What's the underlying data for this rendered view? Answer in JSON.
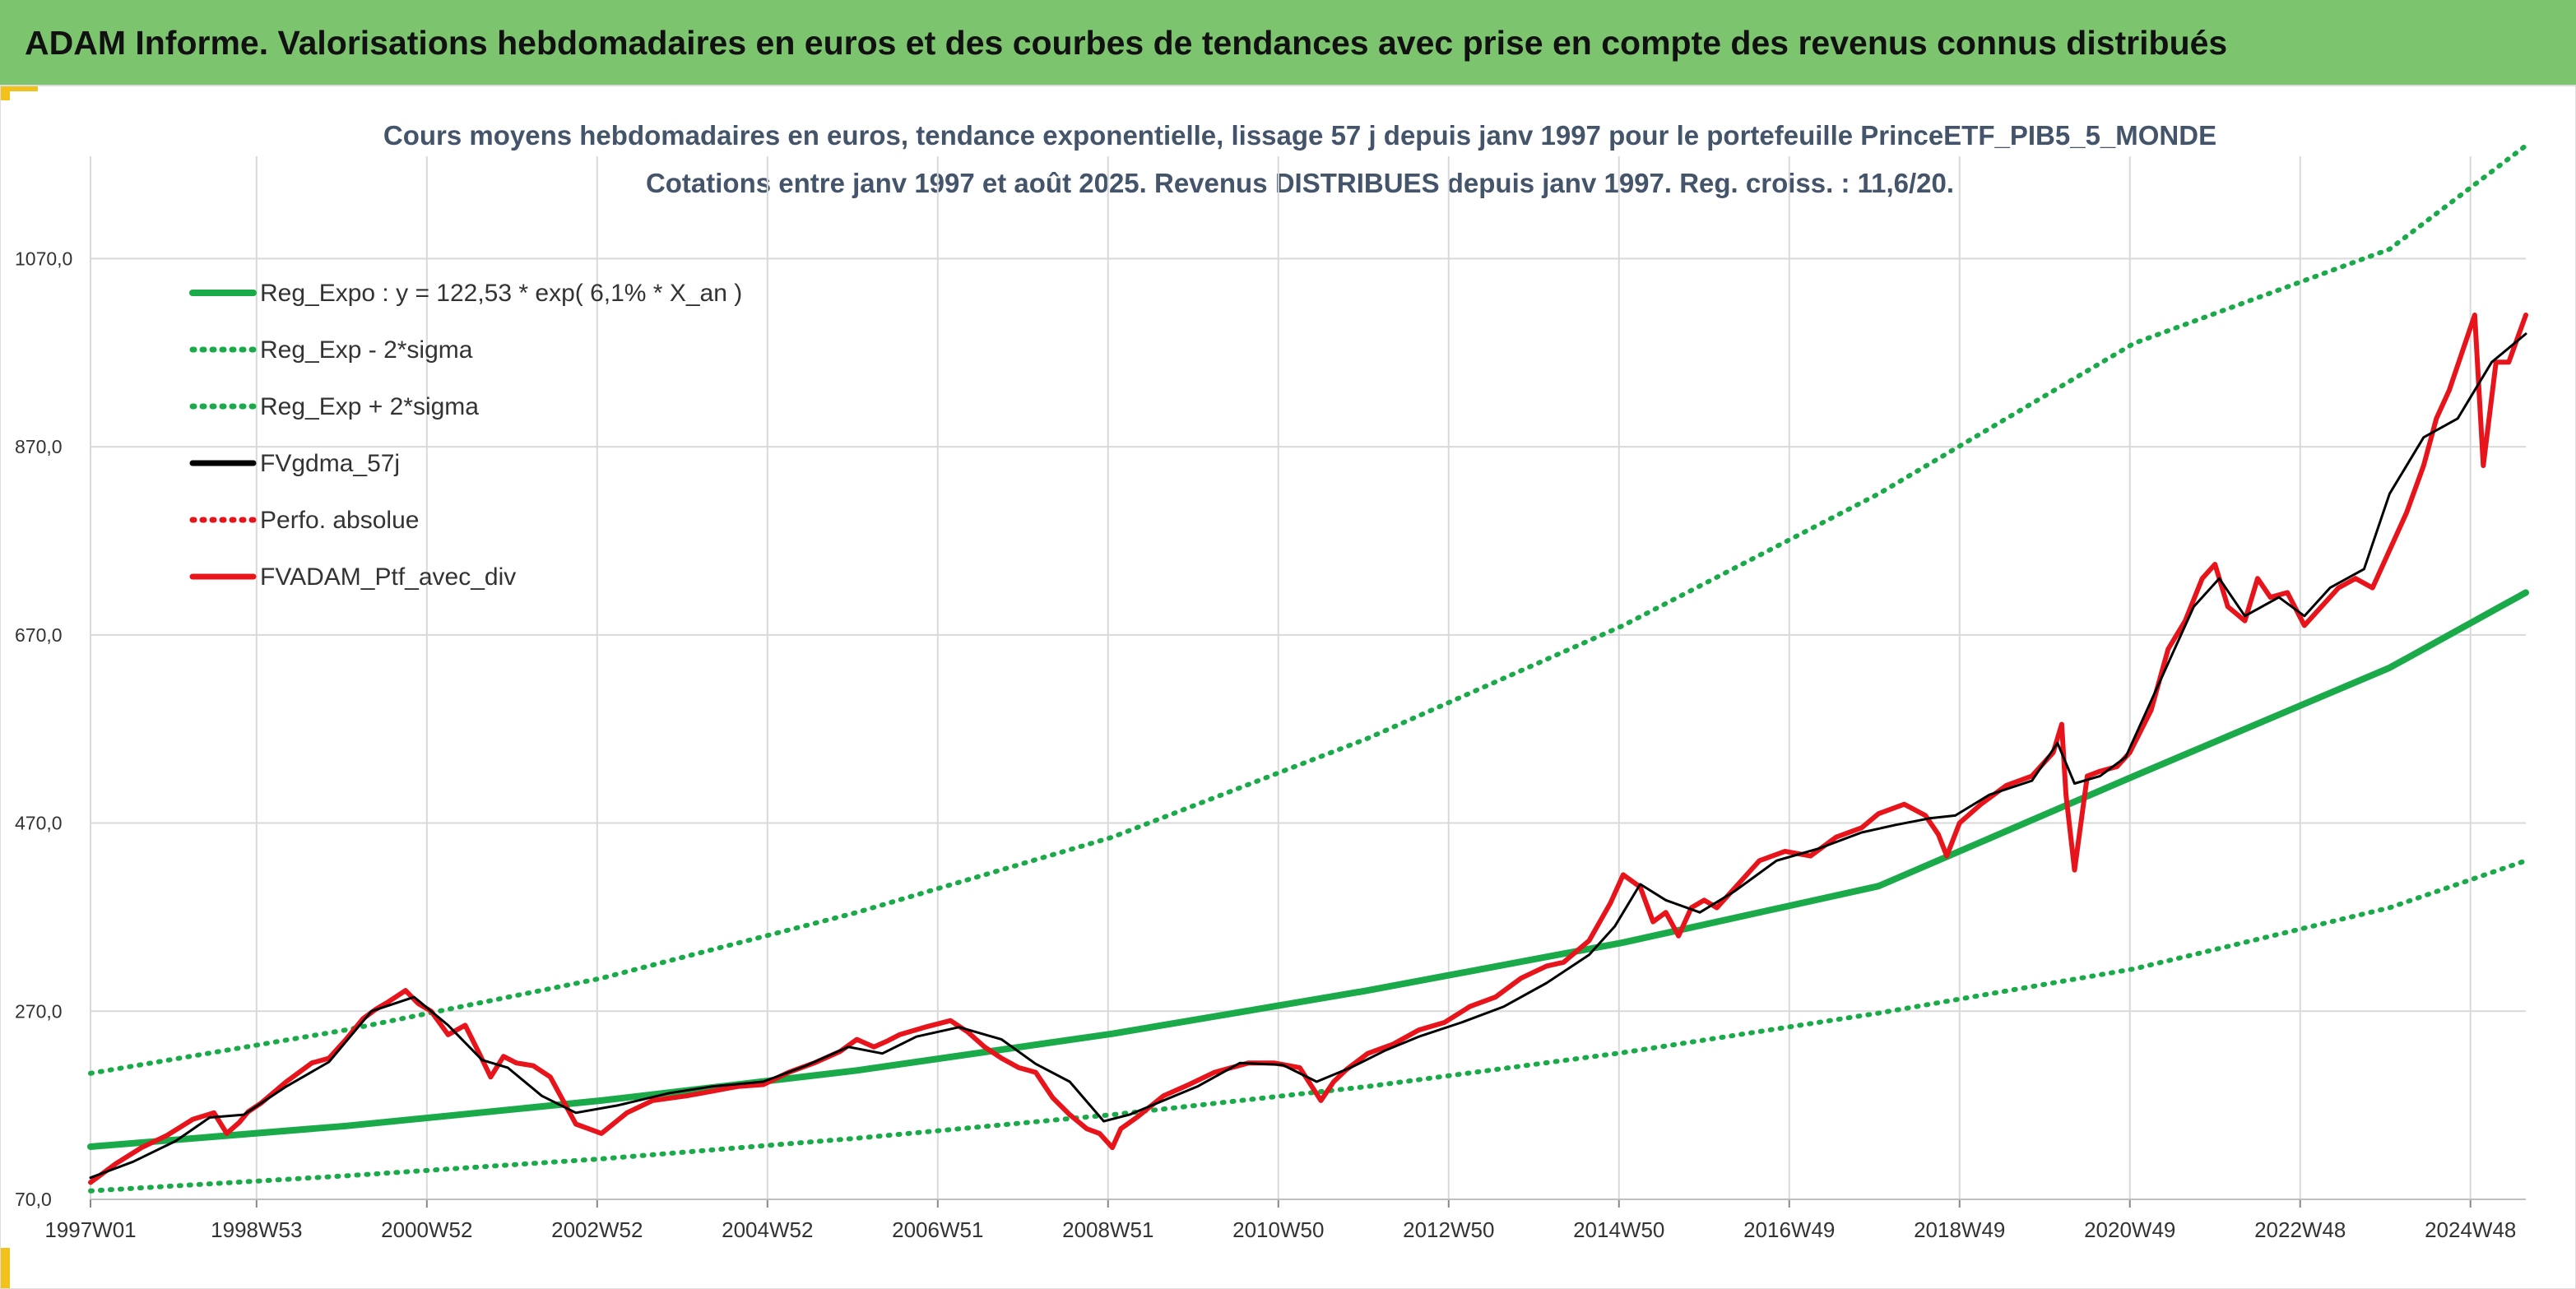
{
  "header": {
    "title": "ADAM Informe. Valorisations hebdomadaires en euros et des courbes de tendances avec prise en compte des revenus connus distribués"
  },
  "colors": {
    "header_bg": "#7dc46f",
    "accent": "#f2c11b",
    "reg_green": "#1aaa4a",
    "black": "#000000",
    "red": "#e8141b"
  },
  "chart_data": {
    "type": "line",
    "title": "Cours moyens hebdomadaires en euros, tendance exponentielle, lissage 57 j depuis janv 1997 pour le portefeuille PrinceETF_PIB5_5_MONDE",
    "subtitle": "Cotations entre janv 1997 et août 2025. Revenus DISTRIBUES depuis janv 1997. Reg. croiss. : 11,6/20.",
    "xlabel": "",
    "ylabel": "",
    "xlim": [
      1997.0,
      2025.6
    ],
    "ylim": [
      70,
      1170
    ],
    "yticks": [
      70,
      270,
      470,
      670,
      870,
      1070
    ],
    "ytick_labels": [
      "70,0",
      "270,0",
      "470,0",
      "670,0",
      "870,0",
      "1070,0"
    ],
    "xticks": [
      1997.0,
      1998.95,
      2000.95,
      2002.95,
      2004.95,
      2006.95,
      2008.95,
      2010.95,
      2012.95,
      2014.95,
      2016.95,
      2018.95,
      2020.95,
      2022.95,
      2024.95
    ],
    "xtick_labels": [
      "1997W01",
      "1998W53",
      "2000W52",
      "2002W52",
      "2004W52",
      "2006W51",
      "2008W51",
      "2010W50",
      "2012W50",
      "2014W50",
      "2016W49",
      "2018W49",
      "2020W49",
      "2022W48",
      "2024W48"
    ],
    "grid": "vertical",
    "legend_position": "top-left",
    "series": [
      {
        "name": "Reg_Expo : y = 122,53 * exp( 6,1% *  X_an )",
        "style": "solid",
        "color": "#1aaa4a",
        "x": [
          1997.0,
          2000.0,
          2003.0,
          2006.0,
          2009.0,
          2012.0,
          2015.0,
          2018.0,
          2021.0,
          2024.0,
          2025.6
        ],
        "y": [
          126,
          148,
          175,
          207,
          246,
          292,
          343,
          403,
          520,
          635,
          715
        ]
      },
      {
        "name": "Reg_Exp - 2*sigma",
        "style": "dotted",
        "color": "#1aaa4a",
        "x": [
          1997.0,
          2000.0,
          2003.0,
          2006.0,
          2009.0,
          2012.0,
          2015.0,
          2018.0,
          2021.0,
          2024.0,
          2025.6
        ],
        "y": [
          79,
          95,
          113,
          135,
          160,
          190,
          226,
          268,
          315,
          380,
          430
        ]
      },
      {
        "name": "Reg_Exp + 2*sigma",
        "style": "dotted",
        "color": "#1aaa4a",
        "x": [
          1997.0,
          2000.0,
          2003.0,
          2006.0,
          2009.0,
          2012.0,
          2015.0,
          2018.0,
          2021.0,
          2024.0,
          2025.6
        ],
        "y": [
          204,
          250,
          305,
          375,
          455,
          560,
          680,
          820,
          980,
          1080,
          1190
        ]
      },
      {
        "name": "FVgdma_57j",
        "style": "solid",
        "color": "#000000",
        "x": [
          1997.0,
          1997.5,
          1998.0,
          1998.4,
          1998.8,
          1999.3,
          1999.8,
          2000.3,
          2000.8,
          2001.2,
          2001.6,
          2001.9,
          2002.3,
          2002.7,
          2003.2,
          2003.8,
          2004.3,
          2004.9,
          2005.4,
          2005.9,
          2006.3,
          2006.7,
          2007.2,
          2007.7,
          2008.1,
          2008.5,
          2008.9,
          2009.2,
          2009.6,
          2010.0,
          2010.5,
          2011.0,
          2011.4,
          2011.8,
          2012.2,
          2012.6,
          2013.1,
          2013.6,
          2014.1,
          2014.6,
          2014.9,
          2015.2,
          2015.5,
          2015.9,
          2016.3,
          2016.8,
          2017.3,
          2017.8,
          2018.2,
          2018.6,
          2018.9,
          2019.3,
          2019.8,
          2020.1,
          2020.3,
          2020.6,
          2020.9,
          2021.3,
          2021.7,
          2022.0,
          2022.3,
          2022.7,
          2023.0,
          2023.3,
          2023.7,
          2024.0,
          2024.4,
          2024.8,
          2025.2,
          2025.6
        ],
        "y": [
          93,
          110,
          132,
          157,
          160,
          190,
          216,
          270,
          285,
          255,
          218,
          210,
          180,
          162,
          170,
          183,
          190,
          195,
          212,
          232,
          225,
          243,
          253,
          240,
          214,
          195,
          153,
          160,
          175,
          190,
          215,
          213,
          195,
          210,
          228,
          243,
          258,
          275,
          300,
          330,
          360,
          405,
          388,
          375,
          397,
          430,
          443,
          460,
          468,
          475,
          478,
          500,
          515,
          555,
          512,
          520,
          540,
          620,
          700,
          730,
          690,
          710,
          690,
          720,
          740,
          820,
          880,
          900,
          960,
          990
        ]
      },
      {
        "name": "Perfo. absolue",
        "style": "dotted",
        "color": "#e8141b",
        "x": [
          1997.0,
          1997.5,
          1998.0,
          1998.4,
          1998.8,
          1999.3,
          1999.8,
          2000.3,
          2000.8,
          2001.2,
          2001.6,
          2001.9,
          2002.3,
          2002.7,
          2003.2,
          2003.8,
          2004.3,
          2004.9,
          2005.4,
          2005.9,
          2006.3,
          2006.7,
          2007.2,
          2007.7,
          2008.1,
          2008.5,
          2008.9,
          2009.2,
          2009.6,
          2010.0,
          2010.5,
          2011.0,
          2011.4,
          2011.8,
          2012.2,
          2012.6,
          2013.1,
          2013.6,
          2014.1,
          2014.6,
          2014.9,
          2015.2,
          2015.5,
          2015.9,
          2016.3,
          2016.8,
          2017.3,
          2017.8,
          2018.2,
          2018.6,
          2018.9,
          2019.3,
          2019.8,
          2020.1,
          2020.3,
          2020.6,
          2020.9,
          2021.3,
          2021.7,
          2022.0,
          2022.3,
          2022.7,
          2023.0,
          2023.3,
          2023.7,
          2024.0,
          2024.4,
          2024.8,
          2025.2,
          2025.6
        ],
        "y": [
          93,
          110,
          132,
          157,
          160,
          190,
          216,
          270,
          285,
          255,
          218,
          210,
          180,
          162,
          170,
          183,
          190,
          195,
          212,
          232,
          225,
          243,
          253,
          240,
          214,
          195,
          153,
          160,
          175,
          190,
          215,
          213,
          195,
          210,
          228,
          243,
          258,
          275,
          300,
          330,
          360,
          405,
          388,
          375,
          397,
          430,
          443,
          460,
          468,
          475,
          478,
          500,
          515,
          555,
          512,
          520,
          540,
          620,
          700,
          730,
          690,
          710,
          690,
          720,
          740,
          820,
          880,
          900,
          960,
          990
        ]
      },
      {
        "name": "FVADAM_Ptf_avec_div",
        "style": "solid",
        "color": "#e8141b",
        "x": [
          1997.0,
          1997.3,
          1997.6,
          1997.9,
          1998.2,
          1998.45,
          1998.6,
          1998.75,
          1998.85,
          1999.0,
          1999.3,
          1999.6,
          1999.8,
          2000.0,
          2000.2,
          2000.35,
          2000.5,
          2000.7,
          2000.85,
          2001.0,
          2001.2,
          2001.4,
          2001.55,
          2001.7,
          2001.85,
          2002.0,
          2002.2,
          2002.4,
          2002.55,
          2002.7,
          2002.85,
          2003.0,
          2003.3,
          2003.6,
          2004.0,
          2004.3,
          2004.6,
          2004.9,
          2005.2,
          2005.5,
          2005.8,
          2006.0,
          2006.2,
          2006.35,
          2006.5,
          2006.8,
          2007.1,
          2007.3,
          2007.5,
          2007.7,
          2007.9,
          2008.1,
          2008.3,
          2008.5,
          2008.7,
          2008.85,
          2009.0,
          2009.1,
          2009.3,
          2009.6,
          2009.9,
          2010.2,
          2010.4,
          2010.6,
          2010.9,
          2011.2,
          2011.45,
          2011.6,
          2011.75,
          2012.0,
          2012.3,
          2012.6,
          2012.9,
          2013.2,
          2013.5,
          2013.8,
          2014.1,
          2014.3,
          2014.6,
          2014.85,
          2015.0,
          2015.2,
          2015.35,
          2015.5,
          2015.65,
          2015.8,
          2015.95,
          2016.1,
          2016.3,
          2016.6,
          2016.9,
          2017.2,
          2017.5,
          2017.8,
          2018.0,
          2018.3,
          2018.55,
          2018.7,
          2018.8,
          2018.95,
          2019.2,
          2019.5,
          2019.8,
          2020.05,
          2020.15,
          2020.2,
          2020.3,
          2020.45,
          2020.6,
          2020.8,
          2020.95,
          2021.2,
          2021.4,
          2021.6,
          2021.8,
          2021.95,
          2022.1,
          2022.3,
          2022.45,
          2022.6,
          2022.8,
          2023.0,
          2023.2,
          2023.4,
          2023.6,
          2023.8,
          2024.0,
          2024.2,
          2024.4,
          2024.55,
          2024.7,
          2024.85,
          2025.0,
          2025.1,
          2025.25,
          2025.4,
          2025.6
        ],
        "y": [
          88,
          108,
          125,
          138,
          155,
          162,
          140,
          152,
          163,
          172,
          195,
          215,
          220,
          240,
          262,
          272,
          280,
          292,
          278,
          270,
          245,
          255,
          228,
          200,
          222,
          215,
          212,
          200,
          175,
          150,
          145,
          140,
          162,
          175,
          180,
          185,
          190,
          192,
          205,
          215,
          227,
          240,
          232,
          238,
          245,
          253,
          260,
          248,
          232,
          220,
          210,
          205,
          178,
          160,
          145,
          140,
          125,
          145,
          158,
          180,
          192,
          205,
          210,
          215,
          215,
          210,
          175,
          195,
          208,
          225,
          235,
          250,
          258,
          275,
          285,
          305,
          318,
          322,
          345,
          385,
          415,
          402,
          365,
          375,
          350,
          380,
          388,
          380,
          400,
          430,
          440,
          435,
          455,
          465,
          480,
          490,
          478,
          458,
          435,
          470,
          490,
          510,
          520,
          545,
          575,
          500,
          420,
          520,
          525,
          530,
          545,
          590,
          655,
          685,
          730,
          745,
          700,
          685,
          730,
          710,
          715,
          680,
          700,
          720,
          730,
          720,
          760,
          800,
          850,
          900,
          930,
          970,
          1010,
          850,
          960,
          960,
          1010
        ]
      }
    ]
  }
}
